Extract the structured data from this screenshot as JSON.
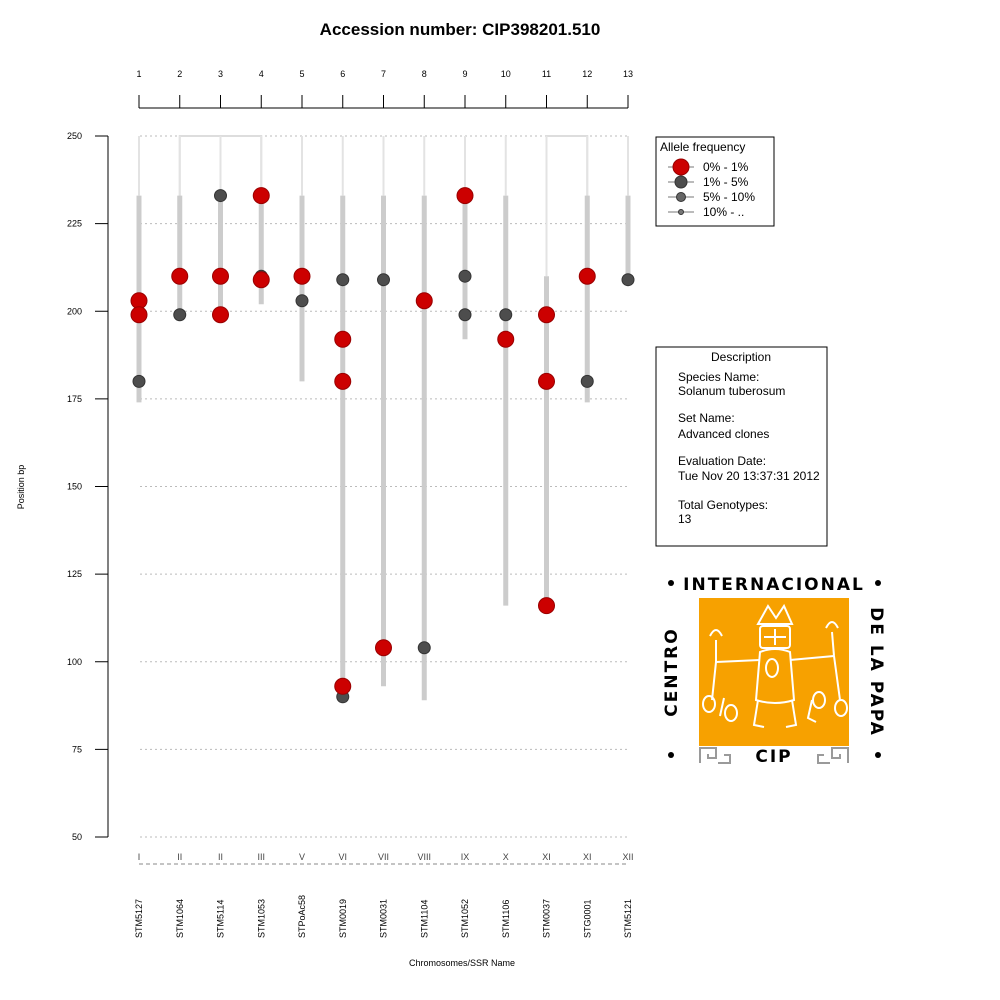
{
  "chart_data": {
    "type": "scatter",
    "title": "Accession number: CIP398201.510",
    "xlabel": "Chromosomes/SSR Name",
    "ylabel": "Position bp",
    "ylim": [
      50,
      250
    ],
    "yticks": [
      50,
      75,
      100,
      125,
      150,
      175,
      200,
      225,
      250
    ],
    "grid": "horizontal dotted",
    "legend_placement": "top-right",
    "markers": [
      {
        "index": "1",
        "chromosome": "I",
        "ssr": "STM5127",
        "range": [
          174,
          233
        ],
        "alleles": [
          {
            "y": 203,
            "class": "0% - 1%"
          },
          {
            "y": 199,
            "class": "0% - 1%"
          },
          {
            "y": 180,
            "class": "1% - 5%"
          }
        ]
      },
      {
        "index": "2",
        "chromosome": "II",
        "ssr": "STM1064",
        "range": [
          199,
          233
        ],
        "alleles": [
          {
            "y": 210,
            "class": "0% - 1%"
          },
          {
            "y": 199,
            "class": "1% - 5%"
          }
        ]
      },
      {
        "index": "3",
        "chromosome": "II",
        "ssr": "STM5114",
        "range": [
          199,
          233
        ],
        "alleles": [
          {
            "y": 233,
            "class": "1% - 5%"
          },
          {
            "y": 210,
            "class": "0% - 1%"
          },
          {
            "y": 199,
            "class": "0% - 1%"
          }
        ]
      },
      {
        "index": "4",
        "chromosome": "III",
        "ssr": "STM1053",
        "range": [
          202,
          233
        ],
        "alleles": [
          {
            "y": 233,
            "class": "0% - 1%"
          },
          {
            "y": 210,
            "class": "1% - 5%"
          },
          {
            "y": 209,
            "class": "0% - 1%"
          }
        ]
      },
      {
        "index": "5",
        "chromosome": "V",
        "ssr": "STPoAc58",
        "range": [
          180,
          233
        ],
        "alleles": [
          {
            "y": 210,
            "class": "0% - 1%"
          },
          {
            "y": 203,
            "class": "1% - 5%"
          }
        ]
      },
      {
        "index": "6",
        "chromosome": "VI",
        "ssr": "STM0019",
        "range": [
          90,
          233
        ],
        "alleles": [
          {
            "y": 209,
            "class": "1% - 5%"
          },
          {
            "y": 192,
            "class": "0% - 1%"
          },
          {
            "y": 180,
            "class": "0% - 1%"
          },
          {
            "y": 93,
            "class": "0% - 1%"
          },
          {
            "y": 90,
            "class": "1% - 5%"
          }
        ]
      },
      {
        "index": "7",
        "chromosome": "VII",
        "ssr": "STM0031",
        "range": [
          93,
          233
        ],
        "alleles": [
          {
            "y": 209,
            "class": "1% - 5%"
          },
          {
            "y": 104,
            "class": "0% - 1%"
          }
        ]
      },
      {
        "index": "8",
        "chromosome": "VIII",
        "ssr": "STM1104",
        "range": [
          89,
          233
        ],
        "alleles": [
          {
            "y": 203,
            "class": "0% - 1%"
          },
          {
            "y": 104,
            "class": "1% - 5%"
          }
        ]
      },
      {
        "index": "9",
        "chromosome": "IX",
        "ssr": "STM1052",
        "range": [
          192,
          233
        ],
        "alleles": [
          {
            "y": 233,
            "class": "0% - 1%"
          },
          {
            "y": 210,
            "class": "1% - 5%"
          },
          {
            "y": 199,
            "class": "1% - 5%"
          }
        ]
      },
      {
        "index": "10",
        "chromosome": "X",
        "ssr": "STM1106",
        "range": [
          116,
          233
        ],
        "alleles": [
          {
            "y": 199,
            "class": "1% - 5%"
          },
          {
            "y": 192,
            "class": "0% - 1%"
          }
        ]
      },
      {
        "index": "11",
        "chromosome": "XI",
        "ssr": "STM0037",
        "range": [
          116,
          210
        ],
        "alleles": [
          {
            "y": 199,
            "class": "0% - 1%"
          },
          {
            "y": 180,
            "class": "0% - 1%"
          },
          {
            "y": 116,
            "class": "0% - 1%"
          }
        ]
      },
      {
        "index": "12",
        "chromosome": "XI",
        "ssr": "STG0001",
        "range": [
          174,
          233
        ],
        "alleles": [
          {
            "y": 210,
            "class": "0% - 1%"
          },
          {
            "y": 180,
            "class": "1% - 5%"
          }
        ]
      },
      {
        "index": "13",
        "chromosome": "XII",
        "ssr": "STM5121",
        "range": [
          209,
          233
        ],
        "alleles": [
          {
            "y": 209,
            "class": "1% - 5%"
          }
        ]
      }
    ],
    "brackets": [
      [
        2,
        4
      ],
      [
        11,
        12
      ]
    ],
    "legend": {
      "title": "Allele frequency",
      "entries": [
        {
          "label": "0% - 1%",
          "class": "0% - 1%",
          "color": "#cc0000"
        },
        {
          "label": "1% - 5%",
          "class": "1% - 5%",
          "color": "#4d4d4d"
        },
        {
          "label": "5% - 10%",
          "class": "5% - 10%",
          "color": "#666666"
        },
        {
          "label": "10% - ..",
          "class": "10% - ..",
          "color": "#777777"
        }
      ]
    }
  },
  "description": {
    "heading": "Description",
    "species_label": "Species Name:",
    "species_value": "Solanum tuberosum",
    "set_label": "Set Name:",
    "set_value": "Advanced clones",
    "date_label": "Evaluation Date:",
    "date_value": "Tue Nov 20 13:37:31 2012",
    "total_label": "Total Genotypes:",
    "total_value": "13"
  },
  "logo": {
    "top": "INTERNACIONAL",
    "left": "CENTRO",
    "right": "DE LA PAPA",
    "bottom": "CIP",
    "color": "#f7a100"
  },
  "colors": {
    "range_bar": "#cccccc",
    "axis": "#000000",
    "grid": "#bbbbbb"
  }
}
